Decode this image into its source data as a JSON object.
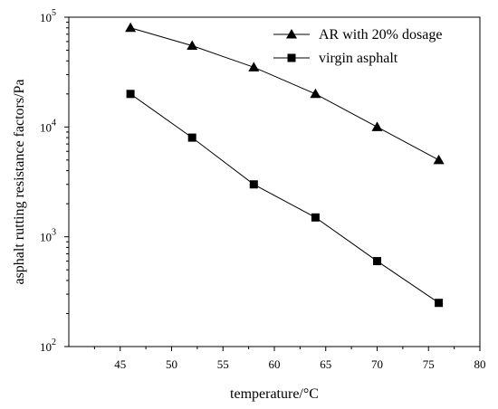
{
  "chart_data": {
    "type": "line",
    "title": "",
    "xlabel": "temperature/°C",
    "ylabel": "asphalt rutting resistance factors/Pa",
    "xlim": [
      40,
      80
    ],
    "ylim": [
      100,
      100000
    ],
    "yscale": "log",
    "grid": false,
    "legend_position": "top-right",
    "x_ticks": [
      "45",
      "50",
      "55",
      "60",
      "65",
      "70",
      "75",
      "80"
    ],
    "y_ticks": [
      {
        "base": "10",
        "exp": "2",
        "value": 100
      },
      {
        "base": "10",
        "exp": "3",
        "value": 1000
      },
      {
        "base": "10",
        "exp": "4",
        "value": 10000
      },
      {
        "base": "10",
        "exp": "5",
        "value": 100000
      }
    ],
    "series": [
      {
        "name": "AR with 20% dosage",
        "marker": "triangle",
        "color": "#000000",
        "x": [
          46,
          52,
          58,
          64,
          70,
          76
        ],
        "y": [
          80000,
          55000,
          35000,
          20000,
          10000,
          5000
        ]
      },
      {
        "name": "virgin asphalt",
        "marker": "square",
        "color": "#000000",
        "x": [
          46,
          52,
          58,
          64,
          70,
          76
        ],
        "y": [
          20000,
          8000,
          3000,
          1500,
          600,
          250
        ]
      }
    ]
  }
}
